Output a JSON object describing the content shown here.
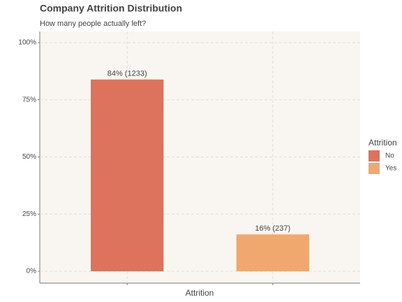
{
  "chart_data": {
    "type": "bar",
    "title": "Company Attrition Distribution",
    "subtitle": "How many people actually left?",
    "x_label": "Attrition",
    "legend_title": "Attrition",
    "categories": [
      "No",
      "Yes"
    ],
    "values": [
      83.88,
      16.12
    ],
    "value_labels": [
      "84% (1233)",
      "16% (237)"
    ],
    "colors": [
      "#dd735c",
      "#f0a86e"
    ],
    "ylim": [
      -5.2,
      104.9
    ],
    "yticks": [
      {
        "value": 0,
        "label": "0%"
      },
      {
        "value": 25,
        "label": "25%"
      },
      {
        "value": 50,
        "label": "50%"
      },
      {
        "value": 75,
        "label": "75%"
      },
      {
        "value": 100,
        "label": "100%"
      }
    ],
    "grid": true,
    "legend": "right"
  }
}
